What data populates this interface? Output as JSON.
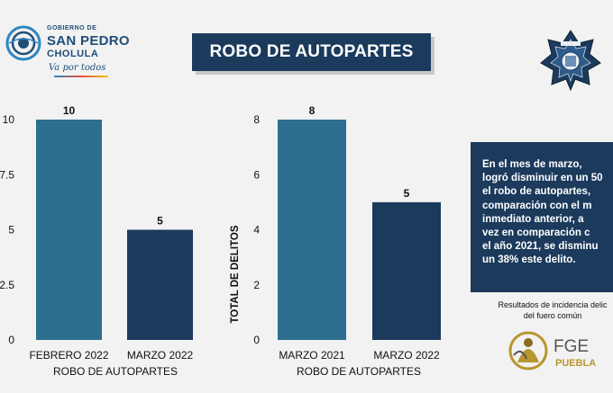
{
  "header": {
    "logo_line1": "GOBIERNO DE",
    "logo_line2": "SAN PEDRO",
    "logo_line3": "CHOLULA",
    "logo_slogan": "Va por todos",
    "title": "ROBO DE AUTOPARTES"
  },
  "info_box": {
    "lines": [
      "En el mes de marzo,",
      "logró disminuir en un 50",
      "el robo de autopartes,",
      "comparación con el m",
      "inmediato anterior, a",
      "vez en comparación c",
      "el año 2021, se disminu",
      "un 38% este delito."
    ]
  },
  "footnote": {
    "line1": "Resultados de incidencia delic",
    "line2": "del fuero común"
  },
  "fge_logo": {
    "line1": "FGE",
    "line2": "PUEBLA"
  },
  "colors": {
    "bar_light": "#2e6e8e",
    "bar_dark": "#1b3a5c",
    "title_bg": "#1b3a5c",
    "background": "#f2f2f2"
  },
  "chart_data": [
    {
      "type": "bar",
      "categories": [
        "FEBRERO 2022",
        "MARZO 2022"
      ],
      "values": [
        10,
        5
      ],
      "data_labels": [
        "10",
        "5"
      ],
      "colors": [
        "#2e6e8e",
        "#1b3a5c"
      ],
      "xlabel": "ROBO DE AUTOPARTES",
      "ylabel": "",
      "ylim": [
        0,
        10
      ],
      "yticks": [
        "0",
        "2.5",
        "5",
        "7.5",
        "10"
      ],
      "grid": false
    },
    {
      "type": "bar",
      "categories": [
        "MARZO 2021",
        "MARZO 2022"
      ],
      "values": [
        8,
        5
      ],
      "data_labels": [
        "8",
        "5"
      ],
      "colors": [
        "#2e6e8e",
        "#1b3a5c"
      ],
      "xlabel": "ROBO DE AUTOPARTES",
      "ylabel": "TOTAL DE DELITOS",
      "ylim": [
        0,
        8
      ],
      "yticks": [
        "0",
        "2",
        "4",
        "6",
        "8"
      ],
      "grid": false
    }
  ]
}
